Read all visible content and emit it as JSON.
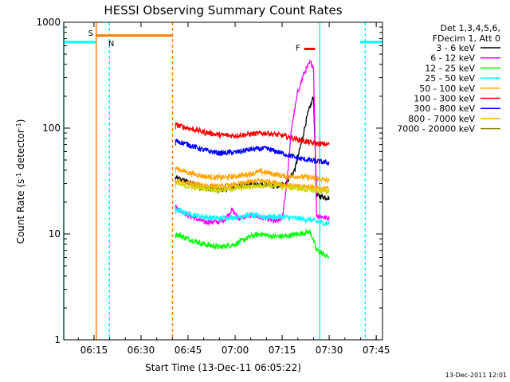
{
  "chart_data": {
    "type": "line",
    "title": "HESSI Observing Summary Count Rates",
    "xlabel": "Start Time (13-Dec-11 06:05:22)",
    "ylabel_main": "Count Rate (s",
    "ylabel_sup1": "-1",
    "ylabel_mid": " detector",
    "ylabel_sup2": "-1",
    "ylabel_end": ")",
    "yscale": "log",
    "ylim": [
      1,
      1000
    ],
    "xlim": [
      "06:05:22",
      "07:47:00"
    ],
    "x_tick_labels": [
      "06:15",
      "06:30",
      "06:45",
      "07:00",
      "07:15",
      "07:30",
      "07:45"
    ],
    "y_tick_labels": [
      "1",
      "10",
      "100",
      "1000"
    ],
    "timestamp": "13-Dec-2011 12:01",
    "legend": {
      "header_line1": "Det 1,3,4,5,6,",
      "header_line2": "FDecim 1, Att 0",
      "position": "right"
    },
    "series": [
      {
        "name": "3 - 6 keV",
        "color": "#000000",
        "points": [
          [
            "06:41:00",
            34
          ],
          [
            "06:45:00",
            31
          ],
          [
            "06:50:00",
            27
          ],
          [
            "06:55:00",
            26
          ],
          [
            "07:00:00",
            28
          ],
          [
            "07:05:00",
            30
          ],
          [
            "07:10:00",
            29
          ],
          [
            "07:13:00",
            28
          ],
          [
            "07:16:00",
            30
          ],
          [
            "07:19:00",
            40
          ],
          [
            "07:21:00",
            70
          ],
          [
            "07:23:00",
            130
          ],
          [
            "07:25:00",
            200
          ],
          [
            "07:26:00",
            23
          ],
          [
            "07:30:00",
            22
          ]
        ]
      },
      {
        "name": "6 - 12 keV",
        "color": "#ff00ff",
        "points": [
          [
            "06:41:00",
            18
          ],
          [
            "06:45:00",
            15
          ],
          [
            "06:50:00",
            13
          ],
          [
            "06:55:00",
            13
          ],
          [
            "06:57:00",
            14
          ],
          [
            "06:59:00",
            17
          ],
          [
            "07:01:00",
            14
          ],
          [
            "07:05:00",
            15
          ],
          [
            "07:10:00",
            14
          ],
          [
            "07:13:00",
            13
          ],
          [
            "07:15:00",
            14
          ],
          [
            "07:16:30",
            30
          ],
          [
            "07:18:00",
            100
          ],
          [
            "07:20:00",
            220
          ],
          [
            "07:22:00",
            330
          ],
          [
            "07:24:00",
            420
          ],
          [
            "07:25:00",
            380
          ],
          [
            "07:26:00",
            15
          ],
          [
            "07:30:00",
            14
          ]
        ]
      },
      {
        "name": "12 - 25 keV",
        "color": "#00ff00",
        "points": [
          [
            "06:41:00",
            10
          ],
          [
            "06:45:00",
            9
          ],
          [
            "06:50:00",
            8
          ],
          [
            "06:55:00",
            7.5
          ],
          [
            "07:00:00",
            8
          ],
          [
            "07:05:00",
            9.5
          ],
          [
            "07:08:00",
            10
          ],
          [
            "07:12:00",
            9.5
          ],
          [
            "07:16:00",
            9.5
          ],
          [
            "07:20:00",
            10
          ],
          [
            "07:24:00",
            10.5
          ],
          [
            "07:26:00",
            7
          ],
          [
            "07:30:00",
            6
          ]
        ]
      },
      {
        "name": "25 - 50 keV",
        "color": "#00ffff",
        "points": [
          [
            "06:41:00",
            17
          ],
          [
            "06:45:00",
            15.5
          ],
          [
            "06:50:00",
            14.5
          ],
          [
            "06:55:00",
            14
          ],
          [
            "07:00:00",
            14.5
          ],
          [
            "07:05:00",
            15
          ],
          [
            "07:10:00",
            14.5
          ],
          [
            "07:15:00",
            14.5
          ],
          [
            "07:20:00",
            14
          ],
          [
            "07:25:00",
            13.5
          ],
          [
            "07:26:00",
            13
          ],
          [
            "07:30:00",
            12.5
          ]
        ]
      },
      {
        "name": "50 - 100 keV",
        "color": "#ffa500",
        "points": [
          [
            "06:41:00",
            42
          ],
          [
            "06:45:00",
            38
          ],
          [
            "06:50:00",
            35
          ],
          [
            "06:55:00",
            34
          ],
          [
            "07:00:00",
            35
          ],
          [
            "07:05:00",
            37
          ],
          [
            "07:08:00",
            39
          ],
          [
            "07:12:00",
            37
          ],
          [
            "07:16:00",
            35
          ],
          [
            "07:20:00",
            35
          ],
          [
            "07:24:00",
            34
          ],
          [
            "07:27:00",
            33
          ],
          [
            "07:30:00",
            32
          ]
        ]
      },
      {
        "name": "100 - 300 keV",
        "color": "#ff0000",
        "points": [
          [
            "06:41:00",
            108
          ],
          [
            "06:45:00",
            100
          ],
          [
            "06:50:00",
            92
          ],
          [
            "06:55:00",
            86
          ],
          [
            "07:00:00",
            85
          ],
          [
            "07:05:00",
            88
          ],
          [
            "07:10:00",
            90
          ],
          [
            "07:15:00",
            85
          ],
          [
            "07:20:00",
            78
          ],
          [
            "07:25:00",
            72
          ],
          [
            "07:30:00",
            70
          ]
        ]
      },
      {
        "name": "300 - 800 keV",
        "color": "#0000ff",
        "points": [
          [
            "06:41:00",
            76
          ],
          [
            "06:45:00",
            70
          ],
          [
            "06:50:00",
            62
          ],
          [
            "06:55:00",
            58
          ],
          [
            "07:00:00",
            59
          ],
          [
            "07:05:00",
            63
          ],
          [
            "07:10:00",
            64
          ],
          [
            "07:15:00",
            58
          ],
          [
            "07:20:00",
            52
          ],
          [
            "07:25:00",
            49
          ],
          [
            "07:30:00",
            47
          ]
        ]
      },
      {
        "name": "800 - 7000 keV",
        "color": "#ffa500",
        "points": [
          [
            "06:41:00",
            32
          ],
          [
            "06:45:00",
            30
          ],
          [
            "06:50:00",
            29
          ],
          [
            "06:55:00",
            28
          ],
          [
            "07:00:00",
            29
          ],
          [
            "07:05:00",
            31
          ],
          [
            "07:08:00",
            32
          ],
          [
            "07:12:00",
            31
          ],
          [
            "07:16:00",
            29
          ],
          [
            "07:20:00",
            28
          ],
          [
            "07:24:00",
            28
          ],
          [
            "07:27:00",
            27
          ],
          [
            "07:30:00",
            27
          ]
        ]
      },
      {
        "name": "7000 - 20000 keV",
        "color": "#d4d400",
        "points": [
          [
            "06:41:00",
            30
          ],
          [
            "06:45:00",
            28
          ],
          [
            "06:50:00",
            27
          ],
          [
            "06:55:00",
            26
          ],
          [
            "07:00:00",
            27
          ],
          [
            "07:05:00",
            28
          ],
          [
            "07:10:00",
            29
          ],
          [
            "07:15:00",
            28
          ],
          [
            "07:20:00",
            27
          ],
          [
            "07:24:00",
            26
          ],
          [
            "07:30:00",
            25
          ]
        ]
      }
    ],
    "legend_colors": [
      "#000000",
      "#ff00ff",
      "#00ff00",
      "#00ffff",
      "#ffa500",
      "#ff0000",
      "#0000ff",
      "#ffa500",
      "#888800"
    ],
    "flags": [
      {
        "label": "S",
        "color": "#ff8000",
        "start": "06:15:48",
        "end": "06:40:07",
        "level": 750
      },
      {
        "label": "N",
        "color": "#00ffff",
        "start": "06:05:22",
        "end": "06:15:35",
        "level": 650
      },
      {
        "label": "N",
        "color": "#00ffff",
        "start": "07:39:50",
        "end": "07:47:00",
        "level": 650
      },
      {
        "label": "F",
        "color": "#ff0000",
        "start": "07:22:00",
        "end": "07:25:30",
        "level": 560
      }
    ],
    "flag_label_positions": [
      {
        "label": "S",
        "time": "06:14:00",
        "value": 800
      },
      {
        "label": "N",
        "time": "06:20:30",
        "value": 640
      },
      {
        "label": "F",
        "time": "07:20:00",
        "value": 580
      }
    ],
    "vertical_markers": [
      {
        "time": "06:15:43",
        "color": "#ff8000",
        "style": "solid"
      },
      {
        "time": "06:19:54",
        "color": "#00ffff",
        "style": "dashed"
      },
      {
        "time": "06:40:03",
        "color": "#ff8000",
        "style": "dashed"
      },
      {
        "time": "07:27:00",
        "color": "#00ffff",
        "style": "solid"
      },
      {
        "time": "07:41:30",
        "color": "#00ffff",
        "style": "dashed"
      },
      {
        "time": "06:05:22",
        "color": "#00ffff",
        "style": "solid"
      }
    ]
  }
}
